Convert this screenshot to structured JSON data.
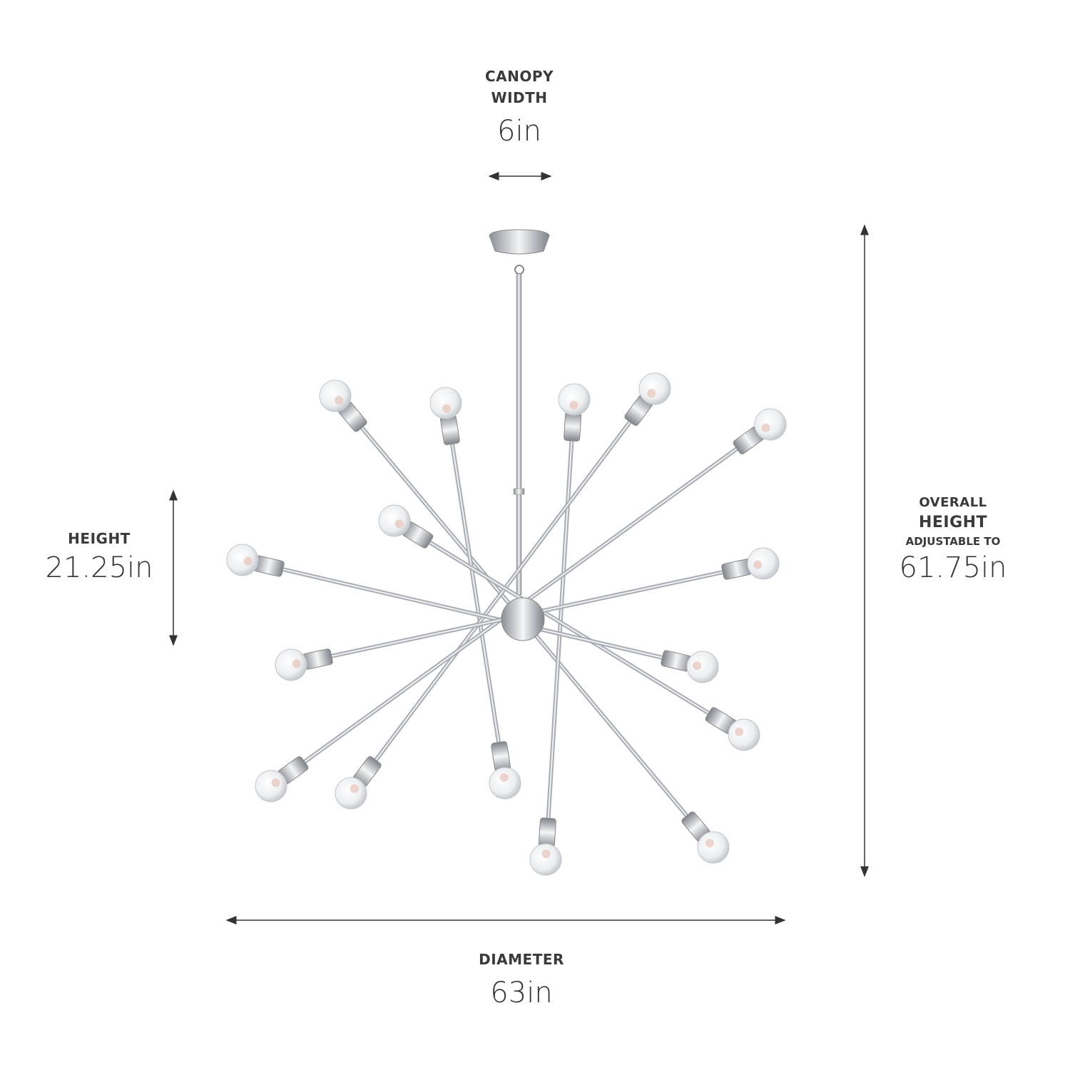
{
  "canopy_width": {
    "line1": "CANOPY",
    "line2": "WIDTH",
    "value": "6in"
  },
  "height": {
    "label": "HEIGHT",
    "value": "21.25in"
  },
  "overall_height": {
    "line1": "OVERALL",
    "line2": "HEIGHT",
    "line3": "ADJUSTABLE TO",
    "value": "61.75in"
  },
  "diameter": {
    "label": "DIAMETER",
    "value": "63in"
  },
  "product": {
    "icon": "sputnik-chandelier-16-light",
    "finish_color": "#b8bcc2",
    "bulb_count": 16
  }
}
